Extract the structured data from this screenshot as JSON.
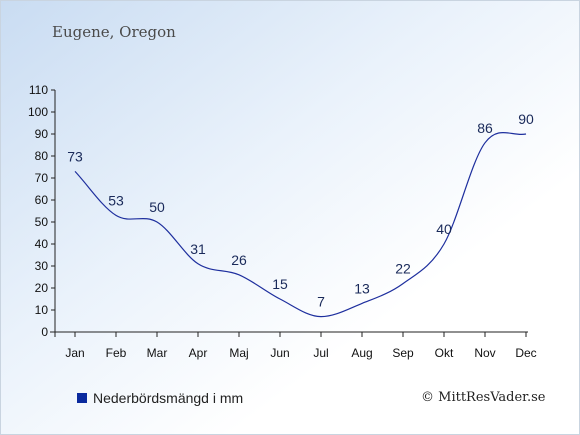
{
  "chart_title": "Eugene, Oregon",
  "legend_label": "Nederbördsmängd i mm",
  "credit": "© MittResVader.se",
  "colors": {
    "line": "#1e2f9e",
    "axis": "#222222",
    "label": "#1a2a5a",
    "swatch": "#0a2a9e"
  },
  "chart_data": {
    "type": "line",
    "categories": [
      "Jan",
      "Feb",
      "Mar",
      "Apr",
      "Maj",
      "Jun",
      "Jul",
      "Aug",
      "Sep",
      "Okt",
      "Nov",
      "Dec"
    ],
    "series": [
      {
        "values": [
          73,
          53,
          50,
          31,
          26,
          15,
          7,
          13,
          22,
          40,
          86,
          90
        ]
      }
    ],
    "data_labels": [
      "73",
      "53",
      "50",
      "31",
      "26",
      "15",
      "7",
      "13",
      "22",
      "40",
      "86",
      "90"
    ],
    "ylim": [
      0,
      110
    ],
    "yticks": [
      0,
      10,
      20,
      30,
      40,
      50,
      60,
      70,
      80,
      90,
      100,
      110
    ],
    "ytick_labels": [
      "0",
      "10",
      "20",
      "30",
      "40",
      "50",
      "60",
      "70",
      "80",
      "90",
      "100",
      "110"
    ],
    "legend_position": "bottom-left",
    "grid": false,
    "smooth": true
  }
}
